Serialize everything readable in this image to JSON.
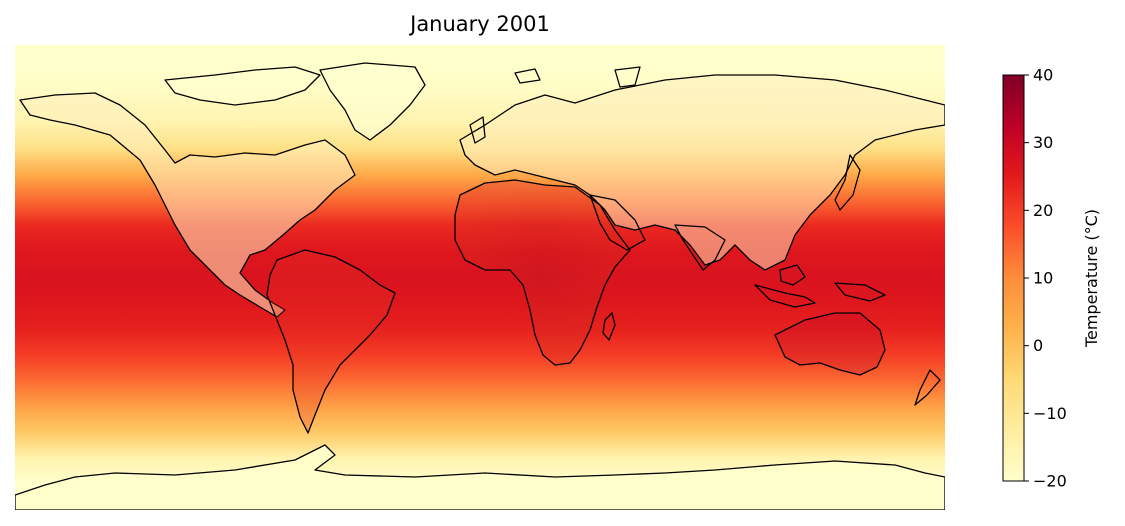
{
  "chart_data": {
    "type": "heatmap",
    "title": "January 2001",
    "projection": "plate-carree",
    "extent_lon": [
      -180,
      180
    ],
    "extent_lat": [
      -90,
      90
    ],
    "colormap": "YlOrRd",
    "colorbar": {
      "label": "Temperature (°C)",
      "vmin": -20,
      "vmax": 40,
      "ticks": [
        -20,
        -10,
        0,
        10,
        20,
        30,
        40
      ],
      "tick_labels": [
        "−20",
        "−10",
        "0",
        "10",
        "20",
        "30",
        "40"
      ],
      "orientation": "vertical",
      "placement": "right"
    },
    "zonal_mean_temperature": {
      "lat": [
        -90,
        -80,
        -70,
        -60,
        -50,
        -40,
        -30,
        -20,
        -10,
        0,
        10,
        20,
        30,
        40,
        50,
        60,
        70,
        80,
        90
      ],
      "values": [
        -20,
        -20,
        -15,
        -2,
        6,
        14,
        20,
        24,
        26,
        27,
        26,
        23,
        14,
        4,
        -8,
        -15,
        -18,
        -20,
        -20
      ]
    },
    "features": [
      "coastlines",
      "country borders"
    ],
    "grid": false
  },
  "colors": {
    "cmap_stops": [
      "#ffffcc",
      "#ffeda0",
      "#fed976",
      "#feb24c",
      "#fd8d3c",
      "#fc4e2a",
      "#e31a1c",
      "#bd0026",
      "#800026"
    ],
    "coastline": "#000000"
  }
}
